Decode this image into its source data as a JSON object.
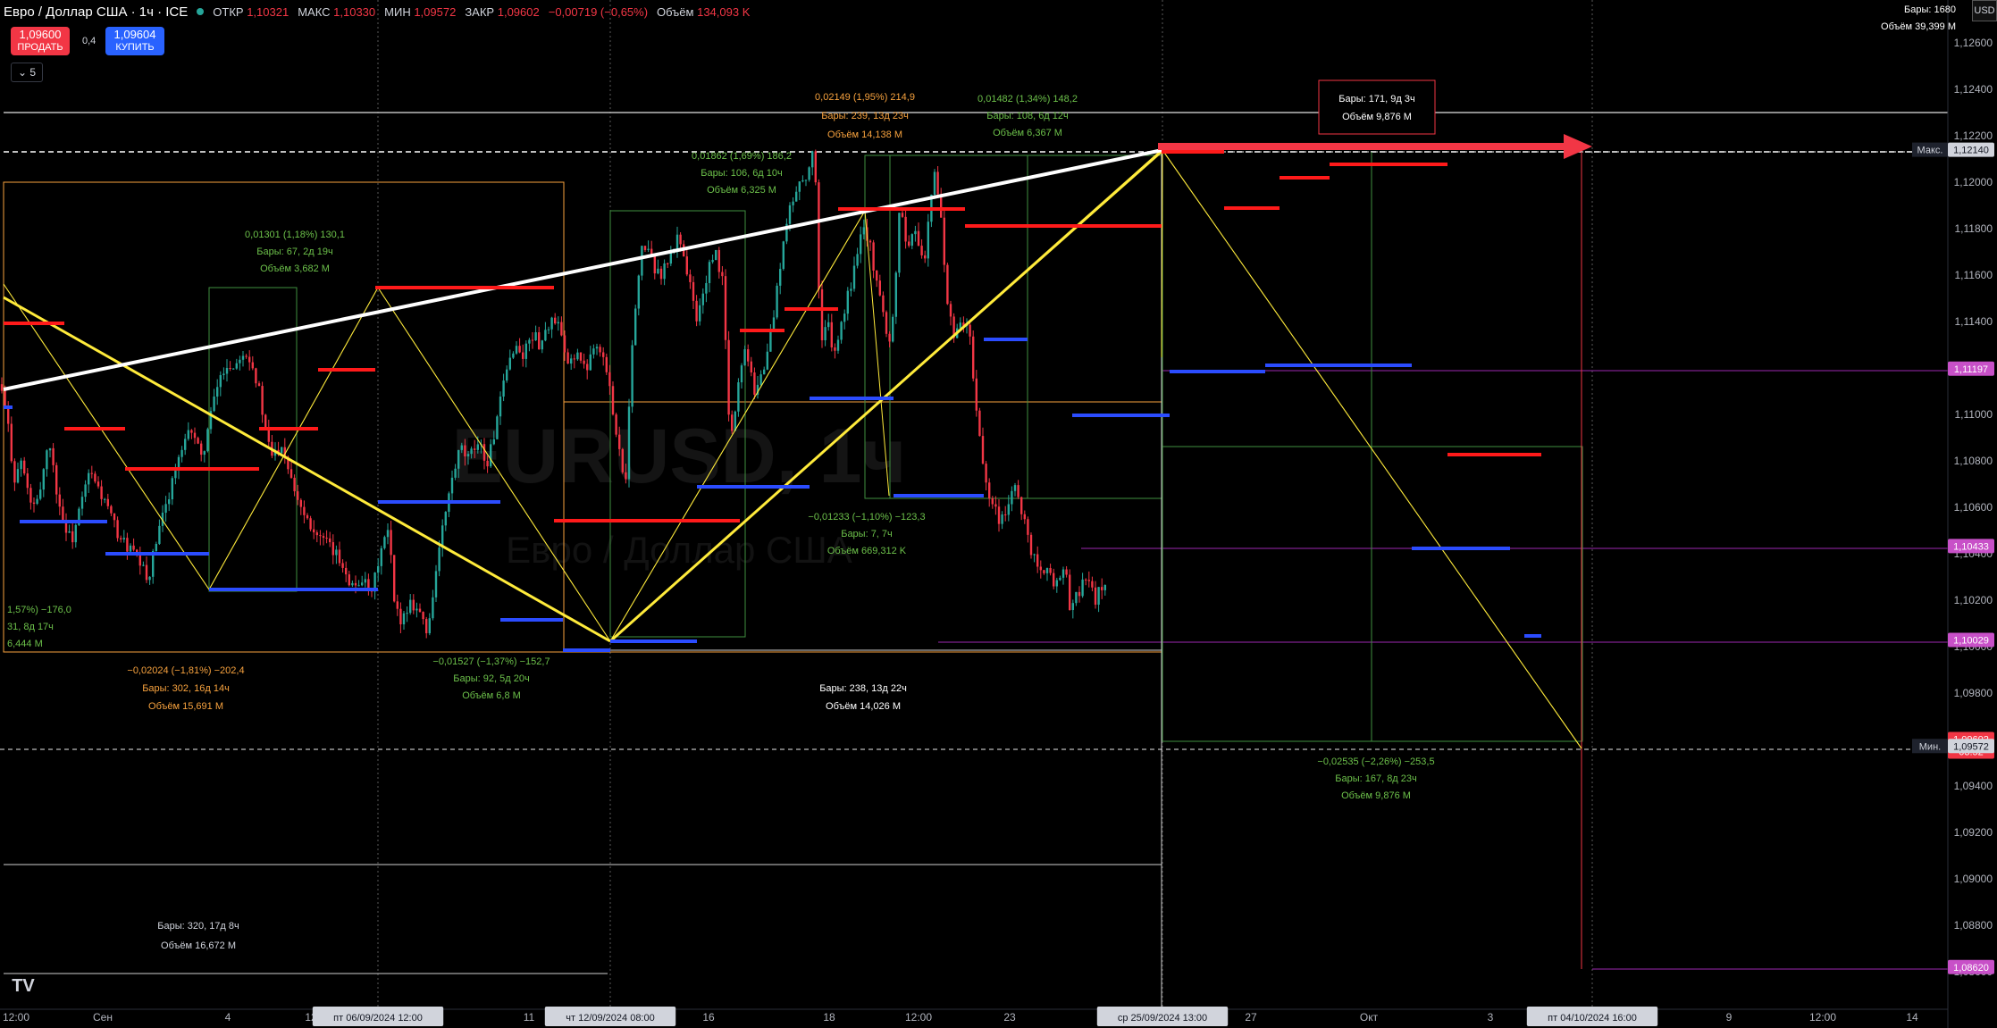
{
  "header": {
    "symbol": "Евро / Доллар США · 1ч · ICE",
    "open_label": "ОТКР",
    "open_value": "1,10321",
    "high_label": "МАКС",
    "high_value": "1,10330",
    "low_label": "МИН",
    "low_value": "1,09572",
    "close_label": "ЗАКР",
    "close_value": "1,09602",
    "change": "−0,00719 (−0,65%)",
    "volume_label": "Объём",
    "volume_value": "134,093 K"
  },
  "trade": {
    "sell_price": "1,09600",
    "sell_label": "ПРОДАТЬ",
    "spread": "0,4",
    "buy_price": "1,09604",
    "buy_label": "КУПИТЬ",
    "collapse_count": "5"
  },
  "info": {
    "bars": "Бары: 1680",
    "volume": "Объём 39,399 M"
  },
  "currency": "USD",
  "watermark": {
    "ticker": "EURUSD, 1ч",
    "name": "Евро / Доллар США"
  },
  "colors": {
    "bull": "#26a69a",
    "bear": "#f23645",
    "red_line": "#ff1a1a",
    "blue_line": "#2b4cff",
    "yellow": "#ffeb3b",
    "white": "#ffffffcc",
    "orange": "#f7a23e",
    "green_text": "#6cc04a",
    "violet": "#9c27b0",
    "pink_label": "#c850c8",
    "red_label": "#f23645"
  },
  "chart_data": {
    "type": "candlestick",
    "ylim": [
      1.0852,
      1.1276
    ],
    "price_ticks": [
      "1,12600",
      "1,12400",
      "1,12200",
      "1,12000",
      "1,11800",
      "1,11600",
      "1,11400",
      "1,11200",
      "1,11000",
      "1,10800",
      "1,10600",
      "1,10400",
      "1,10200",
      "1,10000",
      "1,09800",
      "1,09600",
      "1,09400",
      "1,09200",
      "1,09000",
      "1,08800",
      "1,08600"
    ],
    "price_labels": [
      {
        "text": "Макс.",
        "price": "1,12140",
        "kind": "max"
      },
      {
        "text": "",
        "price": "1,11197",
        "kind": "violet"
      },
      {
        "text": "",
        "price": "1,10433",
        "kind": "violet"
      },
      {
        "text": "",
        "price": "1,10029",
        "kind": "violet"
      },
      {
        "text": "",
        "price": "1,09602",
        "sub": "03:52",
        "kind": "last"
      },
      {
        "text": "Мин.",
        "price": "1,09572",
        "kind": "min"
      },
      {
        "text": "",
        "price": "1,08620",
        "kind": "violet"
      }
    ],
    "time_labels": [
      {
        "text": "12:00"
      },
      {
        "text": "Сен"
      },
      {
        "text": "4"
      },
      {
        "text": "12"
      },
      {
        "text": "пт 06/09/2024   12:00",
        "boxed": true
      },
      {
        "text": "11"
      },
      {
        "text": "чт 12/09/2024   08:00",
        "boxed": true
      },
      {
        "text": "16"
      },
      {
        "text": "18"
      },
      {
        "text": "12:00"
      },
      {
        "text": "23"
      },
      {
        "text": "ср 25/09/2024   13:00",
        "boxed": true
      },
      {
        "text": "27"
      },
      {
        "text": "Окт"
      },
      {
        "text": "3"
      },
      {
        "text": "пт 04/10/2024   16:00",
        "boxed": true
      },
      {
        "text": "9"
      },
      {
        "text": "12:00"
      },
      {
        "text": "14"
      }
    ],
    "price_path": [
      [
        0,
        1.1113
      ],
      [
        8,
        1.1098
      ],
      [
        16,
        1.1072
      ],
      [
        24,
        1.108
      ],
      [
        32,
        1.1065
      ],
      [
        40,
        1.1058
      ],
      [
        48,
        1.1075
      ],
      [
        55,
        1.109
      ],
      [
        62,
        1.107
      ],
      [
        70,
        1.1055
      ],
      [
        80,
        1.1045
      ],
      [
        90,
        1.106
      ],
      [
        100,
        1.1075
      ],
      [
        110,
        1.1068
      ],
      [
        120,
        1.106
      ],
      [
        130,
        1.105
      ],
      [
        140,
        1.1044
      ],
      [
        150,
        1.104
      ],
      [
        160,
        1.1033
      ],
      [
        165,
        1.1028
      ],
      [
        175,
        1.1045
      ],
      [
        185,
        1.106
      ],
      [
        195,
        1.1075
      ],
      [
        205,
        1.1085
      ],
      [
        215,
        1.1095
      ],
      [
        225,
        1.108
      ],
      [
        235,
        1.1098
      ],
      [
        245,
        1.1115
      ],
      [
        255,
        1.1122
      ],
      [
        262,
        1.112
      ],
      [
        270,
        1.1128
      ],
      [
        280,
        1.1125
      ],
      [
        290,
        1.111
      ],
      [
        298,
        1.109
      ],
      [
        305,
        1.1082
      ],
      [
        315,
        1.1088
      ],
      [
        325,
        1.1075
      ],
      [
        335,
        1.1062
      ],
      [
        345,
        1.1055
      ],
      [
        355,
        1.1048
      ],
      [
        370,
        1.1042
      ],
      [
        385,
        1.1035
      ],
      [
        395,
        1.1025
      ],
      [
        405,
        1.103
      ],
      [
        415,
        1.102
      ],
      [
        425,
        1.104
      ],
      [
        435,
        1.105
      ],
      [
        442,
        1.1015
      ],
      [
        450,
        1.1012
      ],
      [
        460,
        1.102
      ],
      [
        470,
        1.1015
      ],
      [
        478,
        1.1005
      ],
      [
        485,
        1.1025
      ],
      [
        495,
        1.105
      ],
      [
        505,
        1.107
      ],
      [
        515,
        1.1085
      ],
      [
        525,
        1.108
      ],
      [
        535,
        1.109
      ],
      [
        545,
        1.1078
      ],
      [
        555,
        1.1095
      ],
      [
        565,
        1.1115
      ],
      [
        575,
        1.113
      ],
      [
        585,
        1.1125
      ],
      [
        595,
        1.1135
      ],
      [
        605,
        1.113
      ],
      [
        615,
        1.114
      ],
      [
        625,
        1.1138
      ],
      [
        635,
        1.112
      ],
      [
        645,
        1.1128
      ],
      [
        655,
        1.1118
      ],
      [
        665,
        1.1132
      ],
      [
        675,
        1.1125
      ],
      [
        685,
        1.1105
      ],
      [
        695,
        1.108
      ],
      [
        700,
        1.107
      ],
      [
        705,
        1.1115
      ],
      [
        712,
        1.115
      ],
      [
        720,
        1.1175
      ],
      [
        730,
        1.1165
      ],
      [
        740,
        1.116
      ],
      [
        750,
        1.1168
      ],
      [
        760,
        1.1178
      ],
      [
        770,
        1.116
      ],
      [
        780,
        1.114
      ],
      [
        790,
        1.1158
      ],
      [
        800,
        1.117
      ],
      [
        810,
        1.1155
      ],
      [
        815,
        1.11
      ],
      [
        820,
        1.109
      ],
      [
        825,
        1.1112
      ],
      [
        835,
        1.113
      ],
      [
        845,
        1.111
      ],
      [
        855,
        1.112
      ],
      [
        865,
        1.114
      ],
      [
        875,
        1.117
      ],
      [
        885,
        1.119
      ],
      [
        895,
        1.12
      ],
      [
        905,
        1.1205
      ],
      [
        912,
        1.1214
      ],
      [
        918,
        1.113
      ],
      [
        925,
        1.114
      ],
      [
        935,
        1.1125
      ],
      [
        945,
        1.1145
      ],
      [
        955,
        1.116
      ],
      [
        965,
        1.1185
      ],
      [
        975,
        1.117
      ],
      [
        985,
        1.115
      ],
      [
        995,
        1.113
      ],
      [
        1000,
        1.1145
      ],
      [
        1008,
        1.1195
      ],
      [
        1015,
        1.117
      ],
      [
        1025,
        1.118
      ],
      [
        1035,
        1.1165
      ],
      [
        1045,
        1.1205
      ],
      [
        1052,
        1.119
      ],
      [
        1060,
        1.115
      ],
      [
        1068,
        1.113
      ],
      [
        1075,
        1.114
      ],
      [
        1085,
        1.1135
      ],
      [
        1090,
        1.111
      ],
      [
        1095,
        1.1095
      ],
      [
        1100,
        1.108
      ],
      [
        1108,
        1.1065
      ],
      [
        1118,
        1.1055
      ],
      [
        1128,
        1.106
      ],
      [
        1138,
        1.107
      ],
      [
        1145,
        1.1055
      ],
      [
        1155,
        1.104
      ],
      [
        1165,
        1.1035
      ],
      [
        1175,
        1.103
      ],
      [
        1185,
        1.1025
      ],
      [
        1192,
        1.1038
      ],
      [
        1198,
        1.1012
      ],
      [
        1205,
        1.1022
      ],
      [
        1215,
        1.103
      ],
      [
        1225,
        1.102
      ],
      [
        1232,
        1.1025
      ],
      [
        1240,
        1.103
      ]
    ]
  },
  "annotations": {
    "white_range_top": {
      "line1": "Бары: 171, 9д 3ч",
      "line2": "Объём 9,876 M"
    },
    "orange_top": {
      "line1": "0,02149 (1,95%) 214,9",
      "line2": "Бары: 239, 13д 23ч",
      "line3": "Объём 14,138 M"
    },
    "green_top_right": {
      "line1": "0,01482 (1,34%) 148,2",
      "line2": "Бары: 108, 6д 12ч",
      "line3": "Объём 6,367 M"
    },
    "green_mid": {
      "line1": "0,01862 (1,69%) 186,2",
      "line2": "Бары: 106, 6д 10ч",
      "line3": "Объём 6,325 M"
    },
    "green_left": {
      "line1": "0,01301 (1,18%) 130,1",
      "line2": "Бары: 67, 2д 19ч",
      "line3": "Объём 3,682 M"
    },
    "green_far_left": {
      "line1": "1,57%) −176,0",
      "line2": "31, 8д 17ч",
      "line3": "6,444 M"
    },
    "orange_bottom": {
      "line1": "−0,02024 (−1,81%) −202,4",
      "line2": "Бары: 302, 16д 14ч",
      "line3": "Объём 15,691 M"
    },
    "green_bottom": {
      "line1": "−0,01527 (−1,37%) −152,7",
      "line2": "Бары: 92, 5д 20ч",
      "line3": "Объём 6,8 M"
    },
    "green_center": {
      "line1": "−0,01233 (−1,10%) −123,3",
      "line2": "Бары: 7, 7ч",
      "line3": "Объём 669,312 K"
    },
    "white_center": {
      "line1": "Бары: 238, 13д 22ч",
      "line2": "Объём 14,026 M"
    },
    "white_bottom_left": {
      "line1": "Бары: 320, 17д 8ч",
      "line2": "Объём 16,672 M"
    },
    "green_right": {
      "line1": "−0,02535 (−2,26%) −253,5",
      "line2": "Бары: 167, 8д 23ч",
      "line3": "Объём 9,876 M"
    }
  }
}
